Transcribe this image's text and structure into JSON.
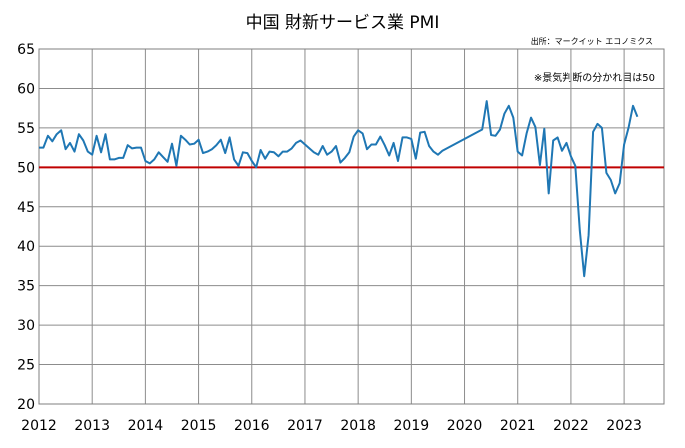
{
  "chart_data": {
    "type": "line",
    "title": "中国 財新サービス業 PMI",
    "source_note": "出所：マークイット エコノミクス",
    "annotation": "※景気判断の分かれ目は50",
    "xlabel": "",
    "ylabel": "",
    "xlim": [
      2012,
      2023.75
    ],
    "ylim": [
      20,
      65
    ],
    "yticks": [
      "20",
      "25",
      "30",
      "35",
      "40",
      "45",
      "50",
      "55",
      "60",
      "65"
    ],
    "xticks": [
      "2012",
      "2013",
      "2014",
      "2015",
      "2016",
      "2017",
      "2018",
      "2019",
      "2020",
      "2021",
      "2022",
      "2023"
    ],
    "grid": true,
    "reference_line": {
      "value": 50,
      "color": "#c00000"
    },
    "line_color": "#1f77b4",
    "series": [
      {
        "x": [
          2012.0,
          2012.083,
          2012.167,
          2012.25,
          2012.333,
          2012.417,
          2012.5,
          2012.583,
          2012.667,
          2012.75,
          2012.833,
          2012.917,
          2013.0,
          2013.083,
          2013.167,
          2013.25,
          2013.333,
          2013.417,
          2013.5,
          2013.583,
          2013.667,
          2013.75,
          2013.833,
          2013.917,
          2014.0,
          2014.083,
          2014.167,
          2014.25,
          2014.333,
          2014.417,
          2014.5,
          2014.583,
          2014.667,
          2014.75,
          2014.833,
          2014.917,
          2015.0,
          2015.083,
          2015.167,
          2015.25,
          2015.333,
          2015.417,
          2015.5,
          2015.583,
          2015.667,
          2015.75,
          2015.833,
          2015.917,
          2016.0,
          2016.083,
          2016.167,
          2016.25,
          2016.333,
          2016.417,
          2016.5,
          2016.583,
          2016.667,
          2016.75,
          2016.833,
          2016.917,
          2017.0,
          2017.083,
          2017.167,
          2017.25,
          2017.333,
          2017.417,
          2017.5,
          2017.583,
          2017.667,
          2017.75,
          2017.833,
          2017.917,
          2018.0,
          2018.083,
          2018.167,
          2018.25,
          2018.333,
          2018.417,
          2018.5,
          2018.583,
          2018.667,
          2018.75,
          2018.833,
          2018.917,
          2019.0,
          2019.083,
          2019.167,
          2019.25,
          2019.333,
          2019.417,
          2019.5,
          2019.583,
          2020.333,
          2020.417,
          2020.5,
          2020.583,
          2020.667,
          2020.75,
          2020.833,
          2020.917,
          2021.0,
          2021.083,
          2021.167,
          2021.25,
          2021.333,
          2021.417,
          2021.5,
          2021.583,
          2021.667,
          2021.75,
          2021.833,
          2021.917,
          2022.0,
          2022.083,
          2022.167,
          2022.25,
          2022.333,
          2022.417,
          2022.5,
          2022.583,
          2022.667,
          2022.75,
          2022.833,
          2022.917,
          2023.0,
          2023.083,
          2023.167,
          2023.25
        ],
        "values": [
          52.5,
          52.5,
          54.0,
          53.3,
          54.2,
          54.7,
          52.3,
          53.1,
          52.0,
          54.2,
          53.4,
          52.0,
          51.6,
          54.0,
          51.9,
          54.2,
          51.0,
          51.0,
          51.2,
          51.2,
          52.8,
          52.4,
          52.5,
          52.5,
          50.8,
          50.5,
          51.0,
          51.9,
          51.3,
          50.7,
          53.0,
          50.2,
          54.0,
          53.5,
          52.9,
          53.0,
          53.5,
          51.8,
          52.0,
          52.3,
          52.8,
          53.5,
          51.8,
          53.8,
          51.0,
          50.2,
          51.9,
          51.8,
          50.8,
          50.0,
          52.2,
          51.1,
          52.0,
          51.9,
          51.4,
          52.0,
          52.0,
          52.4,
          53.1,
          53.4,
          52.9,
          52.4,
          51.9,
          51.6,
          52.7,
          51.6,
          52.0,
          52.7,
          50.6,
          51.2,
          51.9,
          53.9,
          54.7,
          54.3,
          52.3,
          52.9,
          52.9,
          53.9,
          52.8,
          51.5,
          53.1,
          50.8,
          53.8,
          53.8,
          53.6,
          51.1,
          54.4,
          54.5,
          52.7,
          52.0,
          51.6,
          52.1,
          54.8,
          58.4,
          54.1,
          54.0,
          54.8,
          56.8,
          57.8,
          56.3,
          52.0,
          51.5,
          54.3,
          56.3,
          55.1,
          50.3,
          54.9,
          46.7,
          53.4,
          53.8,
          52.1,
          53.1,
          51.4,
          50.2,
          42.0,
          36.2,
          41.4,
          54.5,
          55.5,
          55.0,
          49.3,
          48.4,
          46.7,
          48.0,
          52.9,
          55.0,
          57.8,
          56.4
        ]
      }
    ]
  }
}
